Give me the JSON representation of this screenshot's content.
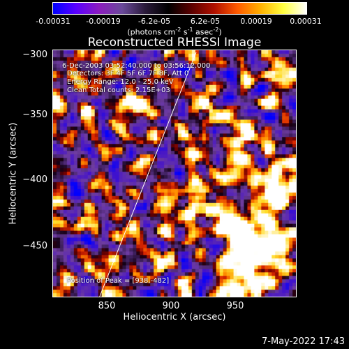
{
  "colorbar": {
    "ticks": [
      "-0.00031",
      "-0.00019",
      "-6.2e-05",
      "6.2e-05",
      "0.00019",
      "0.00031"
    ],
    "unit_main": "(photons cm",
    "unit_exp1": "-2",
    "unit_s": " s",
    "unit_exp2": "-1",
    "unit_asec": " asec",
    "unit_exp3": "-2",
    "unit_end": ")",
    "colormap": [
      "#0000ff",
      "#5a00ff",
      "#8c1cbf",
      "#6a4a9a",
      "#2a1a3a",
      "#000000",
      "#5a0000",
      "#b01000",
      "#ff5a00",
      "#ffb000",
      "#ffff40",
      "#ffffff"
    ]
  },
  "title": "Reconstructed RHESSI Image",
  "info": {
    "time_range": "6-Dec-2003 03:52:40.000 to 03:56:12.000",
    "detectors": "Detectors: 3F 4F 5F 6F 7F 8F, Att 0",
    "energy": "Energy Range: 12.0 - 25.0 keV",
    "method": "Clean    Total counts: 2.15E+03",
    "peak": "Position of Peak = [938,-482]"
  },
  "axes": {
    "xlabel": "Heliocentric X (arcsec)",
    "ylabel": "Heliocentric Y (arcsec)",
    "xticks": [
      "850",
      "900",
      "950"
    ],
    "yticks": [
      "−300",
      "−350",
      "−400",
      "−450"
    ],
    "x_range": [
      808,
      998
    ],
    "y_range": [
      -496,
      -297
    ]
  },
  "timestamp": "7-May-2022 17:43"
}
